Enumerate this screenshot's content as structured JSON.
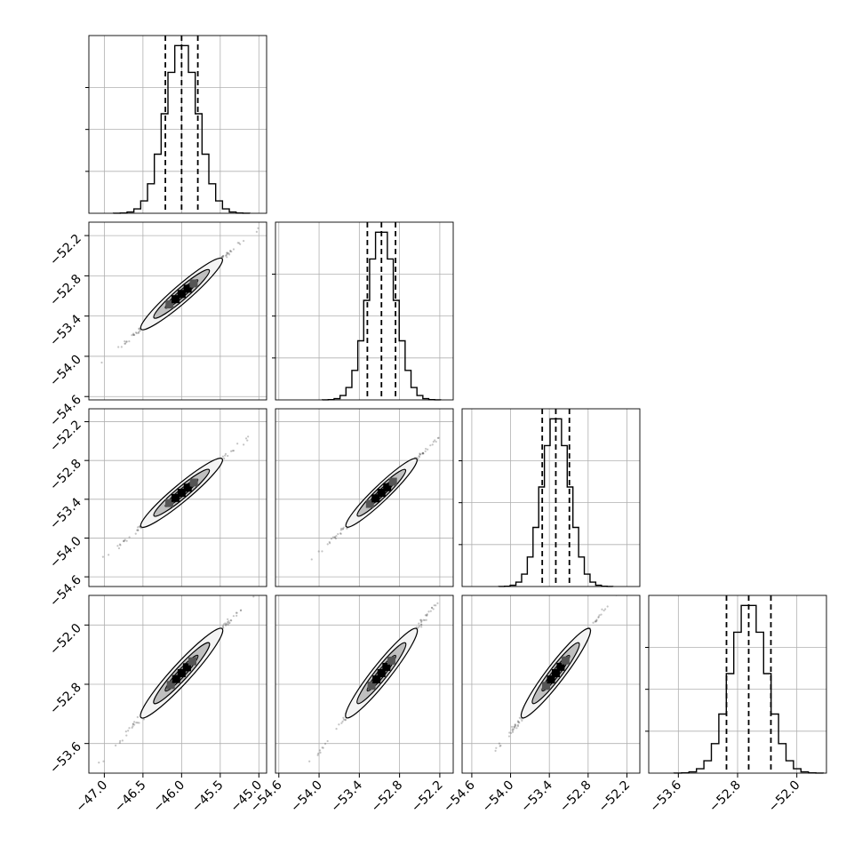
{
  "chart_data": {
    "type": "corner",
    "grid": true,
    "n_params": 4,
    "colors": {
      "line": "#000000",
      "points": "#555555",
      "contour_fill": "#bfbfbf",
      "grid": "#b0b0b0"
    },
    "params": [
      {
        "index": 0,
        "mean": -46.0,
        "sigma": 0.21,
        "quantiles": [
          -46.21,
          -46.0,
          -45.79
        ],
        "range": [
          -47.2,
          -44.9
        ],
        "ticks": [
          -47.0,
          -46.5,
          -46.0,
          -45.5,
          -45.0
        ],
        "tick_labels": [
          "−47.0",
          "−46.5",
          "−46.0",
          "−45.5",
          "−45.0"
        ]
      },
      {
        "index": 1,
        "mean": -53.07,
        "sigma": 0.21,
        "quantiles": [
          -53.28,
          -53.07,
          -52.86
        ],
        "range": [
          -54.65,
          -52.0
        ],
        "ticks": [
          -54.6,
          -54.0,
          -53.4,
          -52.8,
          -52.2
        ],
        "tick_labels": [
          "−54.6",
          "−54.0",
          "−53.4",
          "−52.8",
          "−52.2"
        ]
      },
      {
        "index": 2,
        "mean": -53.3,
        "sigma": 0.21,
        "quantiles": [
          -53.51,
          -53.3,
          -53.09
        ],
        "range": [
          -54.75,
          -52.0
        ],
        "ticks": [
          -54.6,
          -54.0,
          -53.4,
          -52.8,
          -52.2
        ],
        "tick_labels": [
          "−54.6",
          "−54.0",
          "−53.4",
          "−52.8",
          "−52.2"
        ]
      },
      {
        "index": 3,
        "mean": -52.65,
        "sigma": 0.24,
        "quantiles": [
          -52.95,
          -52.65,
          -52.35
        ],
        "range": [
          -54.0,
          -51.6
        ],
        "ticks": [
          -53.6,
          -52.8,
          -52.0
        ],
        "tick_labels": [
          "−53.6",
          "−52.8",
          "−52.0"
        ]
      }
    ],
    "histogram": {
      "bins": 20,
      "style": "step"
    },
    "correlation": 0.995,
    "scatter_points": 300
  }
}
